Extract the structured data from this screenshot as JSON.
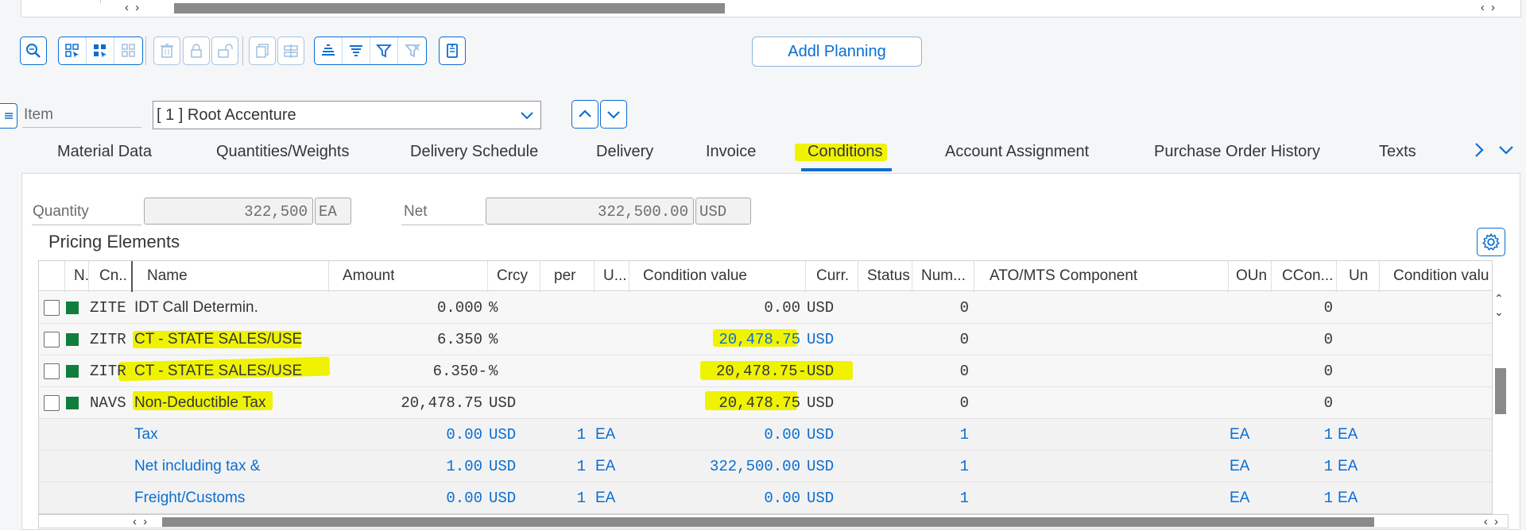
{
  "toolbar": {
    "addl_planning": "Addl Planning"
  },
  "item": {
    "label": "Item",
    "selected": "[ 1 ] Root Accenture"
  },
  "tabs": [
    {
      "label": "Material Data"
    },
    {
      "label": "Quantities/Weights"
    },
    {
      "label": "Delivery Schedule"
    },
    {
      "label": "Delivery"
    },
    {
      "label": "Invoice"
    },
    {
      "label": "Conditions",
      "active": true
    },
    {
      "label": "Account Assignment"
    },
    {
      "label": "Purchase Order History"
    },
    {
      "label": "Texts"
    }
  ],
  "header": {
    "quantity_label": "Quantity",
    "quantity_value": "322,500",
    "quantity_unit": "EA",
    "net_label": "Net",
    "net_value": "322,500.00",
    "net_currency": "USD"
  },
  "pricing": {
    "title": "Pricing Elements",
    "columns": [
      "N.",
      "Cn...",
      "Name",
      "Amount",
      "Crcy",
      "per",
      "U...",
      "Condition value",
      "Curr.",
      "Status",
      "Num...",
      "ATO/MTS Component",
      "OUn",
      "CCon...",
      "Un",
      "Condition valu"
    ],
    "rows": [
      {
        "cn": "ZITE",
        "name": "IDT Call Determin.",
        "amount": "0.000",
        "crcy": "%",
        "per": "",
        "u": "",
        "cond_value": "0.00",
        "curr": "USD",
        "num": "0",
        "oun": "",
        "ccon": "0",
        "un": ""
      },
      {
        "cn": "ZITR",
        "name": "CT - STATE SALES/USE",
        "amount": "6.350",
        "crcy": "%",
        "per": "",
        "u": "",
        "cond_value": "20,478.75",
        "curr": "USD",
        "num": "0",
        "oun": "",
        "ccon": "0",
        "un": ""
      },
      {
        "cn": "ZITR",
        "name": "CT - STATE SALES/USE",
        "amount": "6.350-",
        "crcy": "%",
        "per": "",
        "u": "",
        "cond_value": "20,478.75-",
        "curr": "USD",
        "num": "0",
        "oun": "",
        "ccon": "0",
        "un": ""
      },
      {
        "cn": "NAVS",
        "name": "Non-Deductible Tax",
        "amount": "20,478.75",
        "crcy": "USD",
        "per": "",
        "u": "",
        "cond_value": "20,478.75",
        "curr": "USD",
        "num": "0",
        "oun": "",
        "ccon": "0",
        "un": ""
      },
      {
        "cn": "",
        "name": "Tax",
        "amount": "0.00",
        "crcy": "USD",
        "per": "1",
        "u": "EA",
        "cond_value": "0.00",
        "curr": "USD",
        "num": "1",
        "oun": "EA",
        "ccon": "1",
        "un": "EA"
      },
      {
        "cn": "",
        "name": "Net including tax &",
        "amount": "1.00",
        "crcy": "USD",
        "per": "1",
        "u": "EA",
        "cond_value": "322,500.00",
        "curr": "USD",
        "num": "1",
        "oun": "EA",
        "ccon": "1",
        "un": "EA"
      },
      {
        "cn": "",
        "name": "Freight/Customs",
        "amount": "0.00",
        "crcy": "USD",
        "per": "1",
        "u": "EA",
        "cond_value": "0.00",
        "curr": "USD",
        "num": "1",
        "oun": "EA",
        "ccon": "1",
        "un": "EA"
      }
    ]
  },
  "colors": {
    "accent": "#0a6ed1",
    "highlight": "#f0f300",
    "status_green": "#107e3e"
  }
}
